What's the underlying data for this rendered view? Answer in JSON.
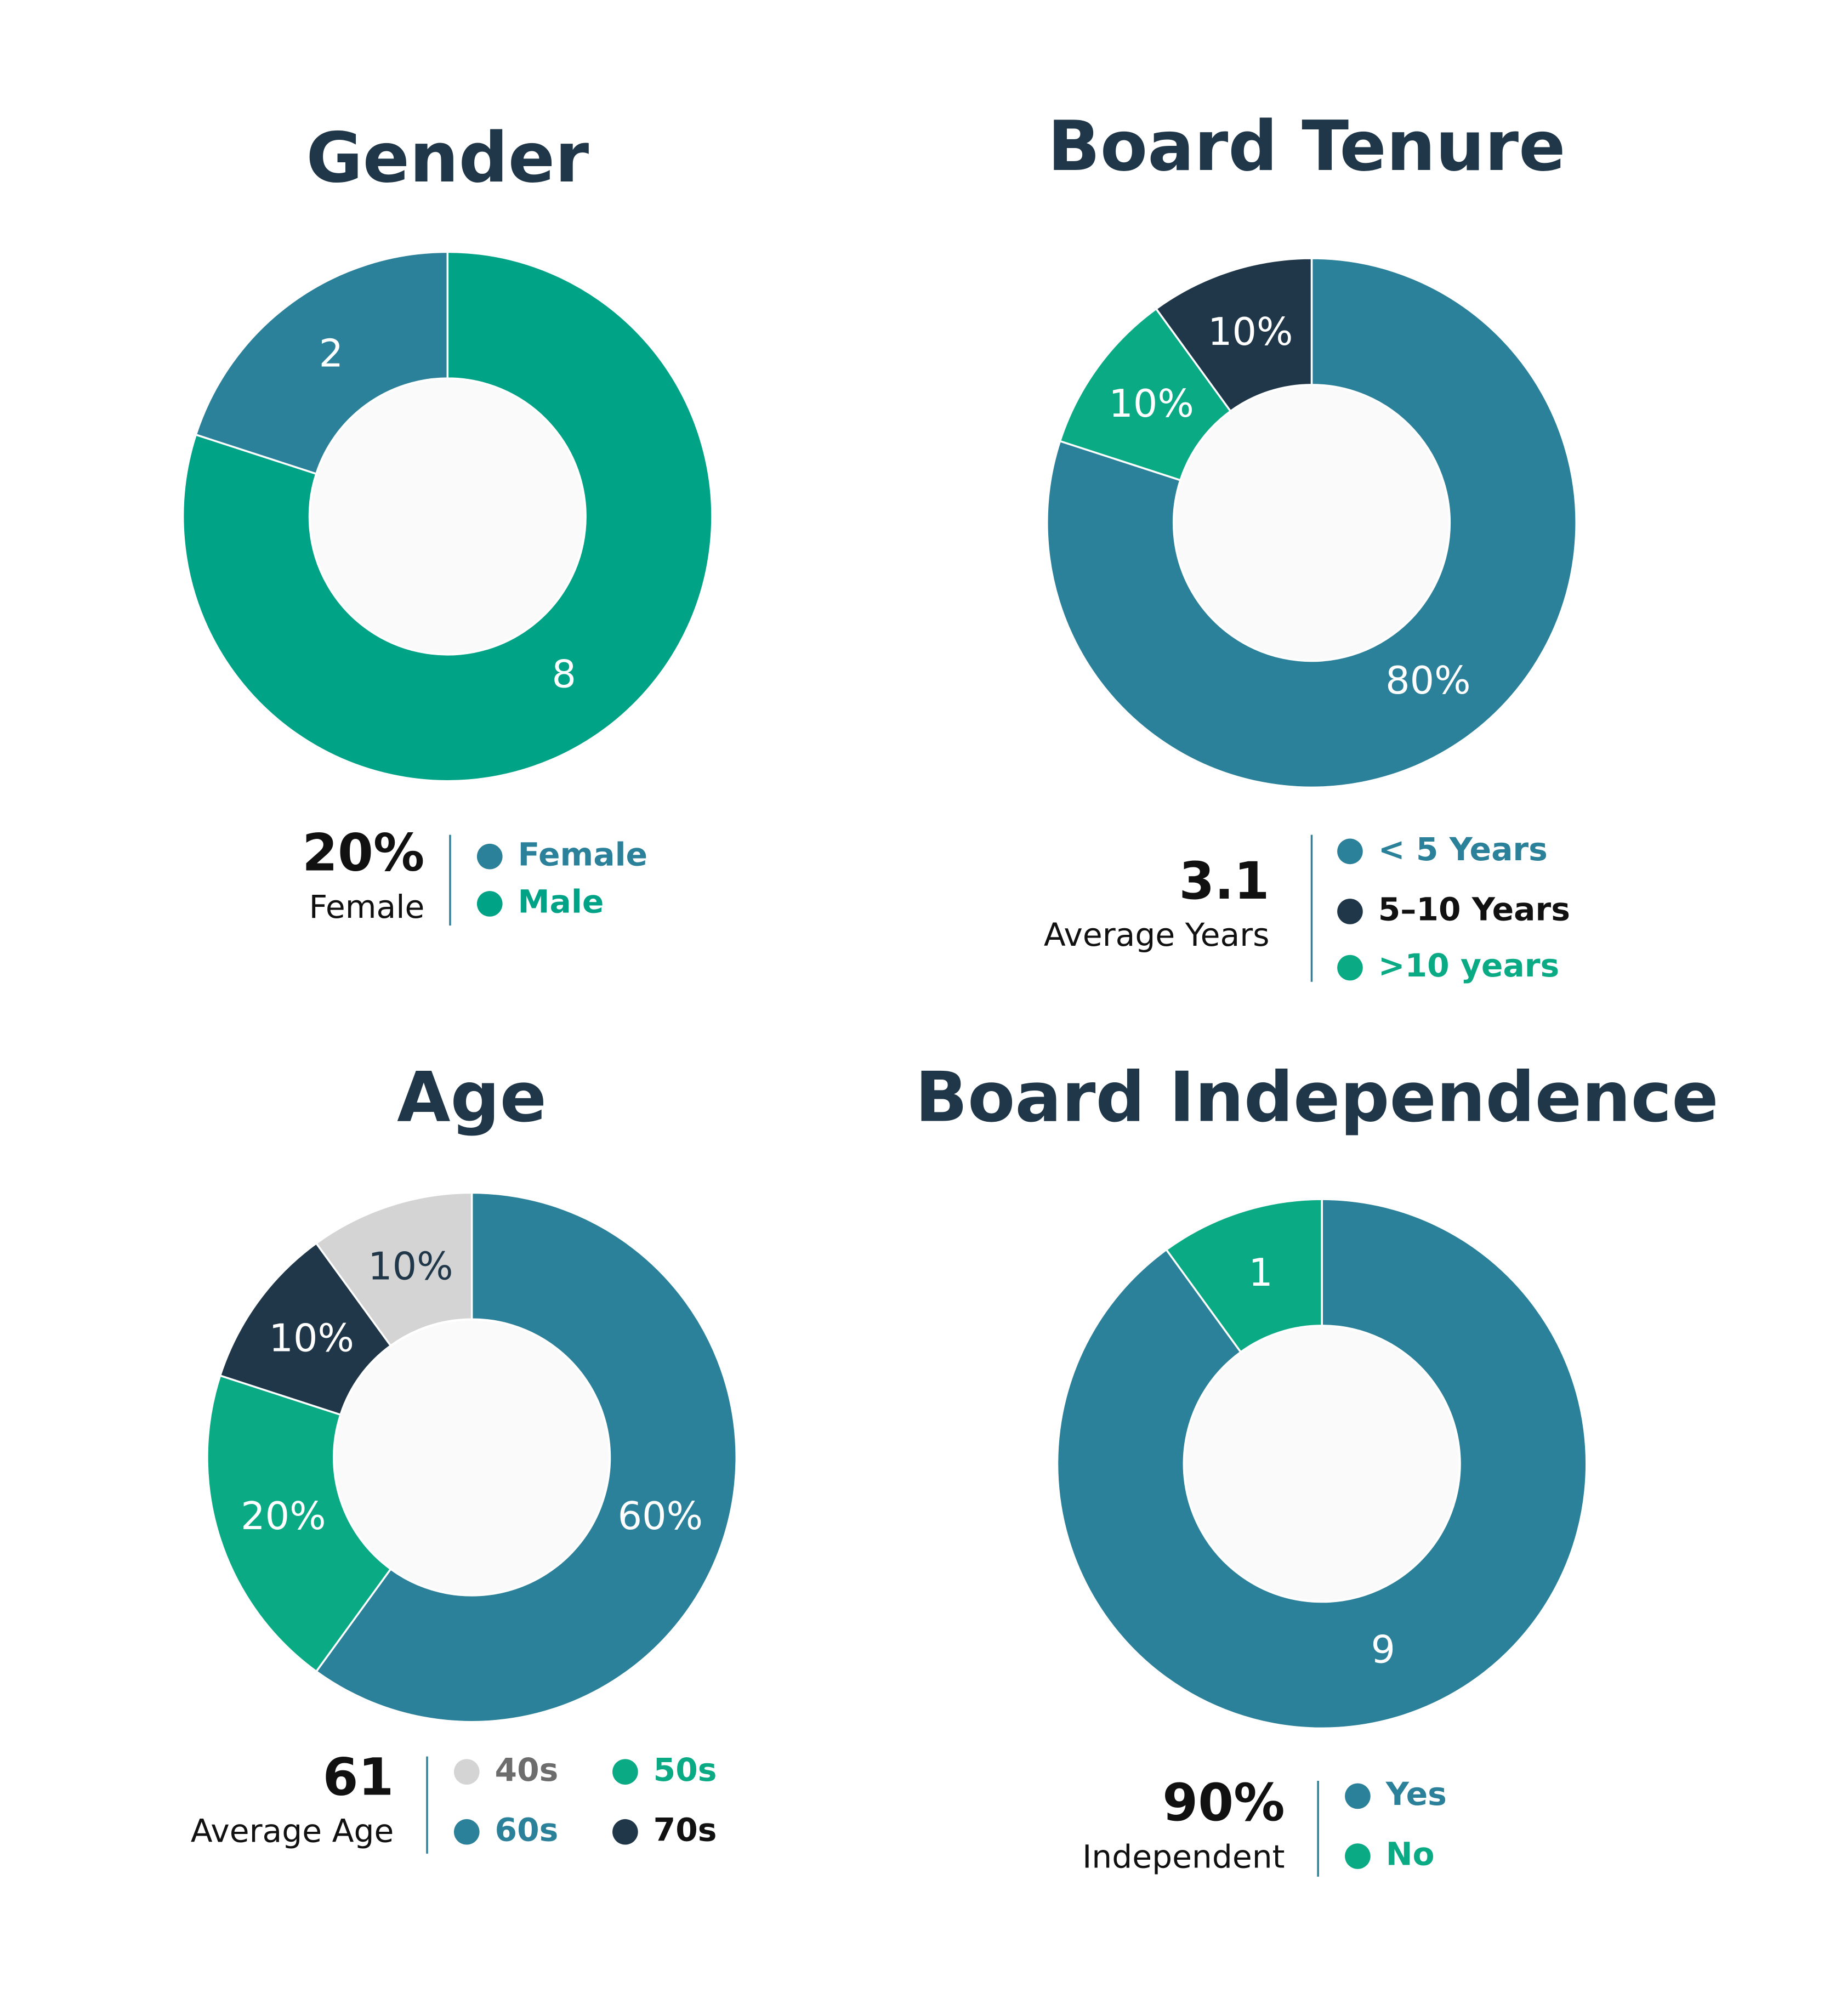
{
  "chart_data": [
    {
      "type": "pie",
      "title": "Gender",
      "categories": [
        "Male",
        "Female"
      ],
      "values": [
        8,
        2
      ],
      "colors": [
        "#00a386",
        "#2b8199"
      ],
      "summary_value": "20%",
      "summary_label": "Female"
    },
    {
      "type": "pie",
      "title": "Board Tenure",
      "categories": [
        "< 5 Years",
        ">10 years",
        "5–10 Years"
      ],
      "values": [
        80,
        10,
        10
      ],
      "value_labels": [
        "80%",
        "10%",
        "10%"
      ],
      "colors": [
        "#2b8199",
        "#0aaa85",
        "#1f3748"
      ],
      "summary_value": "3.1",
      "summary_label": "Average Years"
    },
    {
      "type": "pie",
      "title": "Age",
      "categories": [
        "60s",
        "50s",
        "70s",
        "40s"
      ],
      "values": [
        60,
        20,
        10,
        10
      ],
      "value_labels": [
        "60%",
        "20%",
        "10%",
        "10%"
      ],
      "colors": [
        "#2b8199",
        "#0aaa85",
        "#1f3748",
        "#d4d4d4"
      ],
      "summary_value": "61",
      "summary_label": "Average Age"
    },
    {
      "type": "pie",
      "title": "Board Independence",
      "categories": [
        "Yes",
        "No"
      ],
      "values": [
        9,
        1
      ],
      "colors": [
        "#2b8199",
        "#0aaa85"
      ],
      "summary_value": "90%",
      "summary_label": "Independent"
    }
  ]
}
